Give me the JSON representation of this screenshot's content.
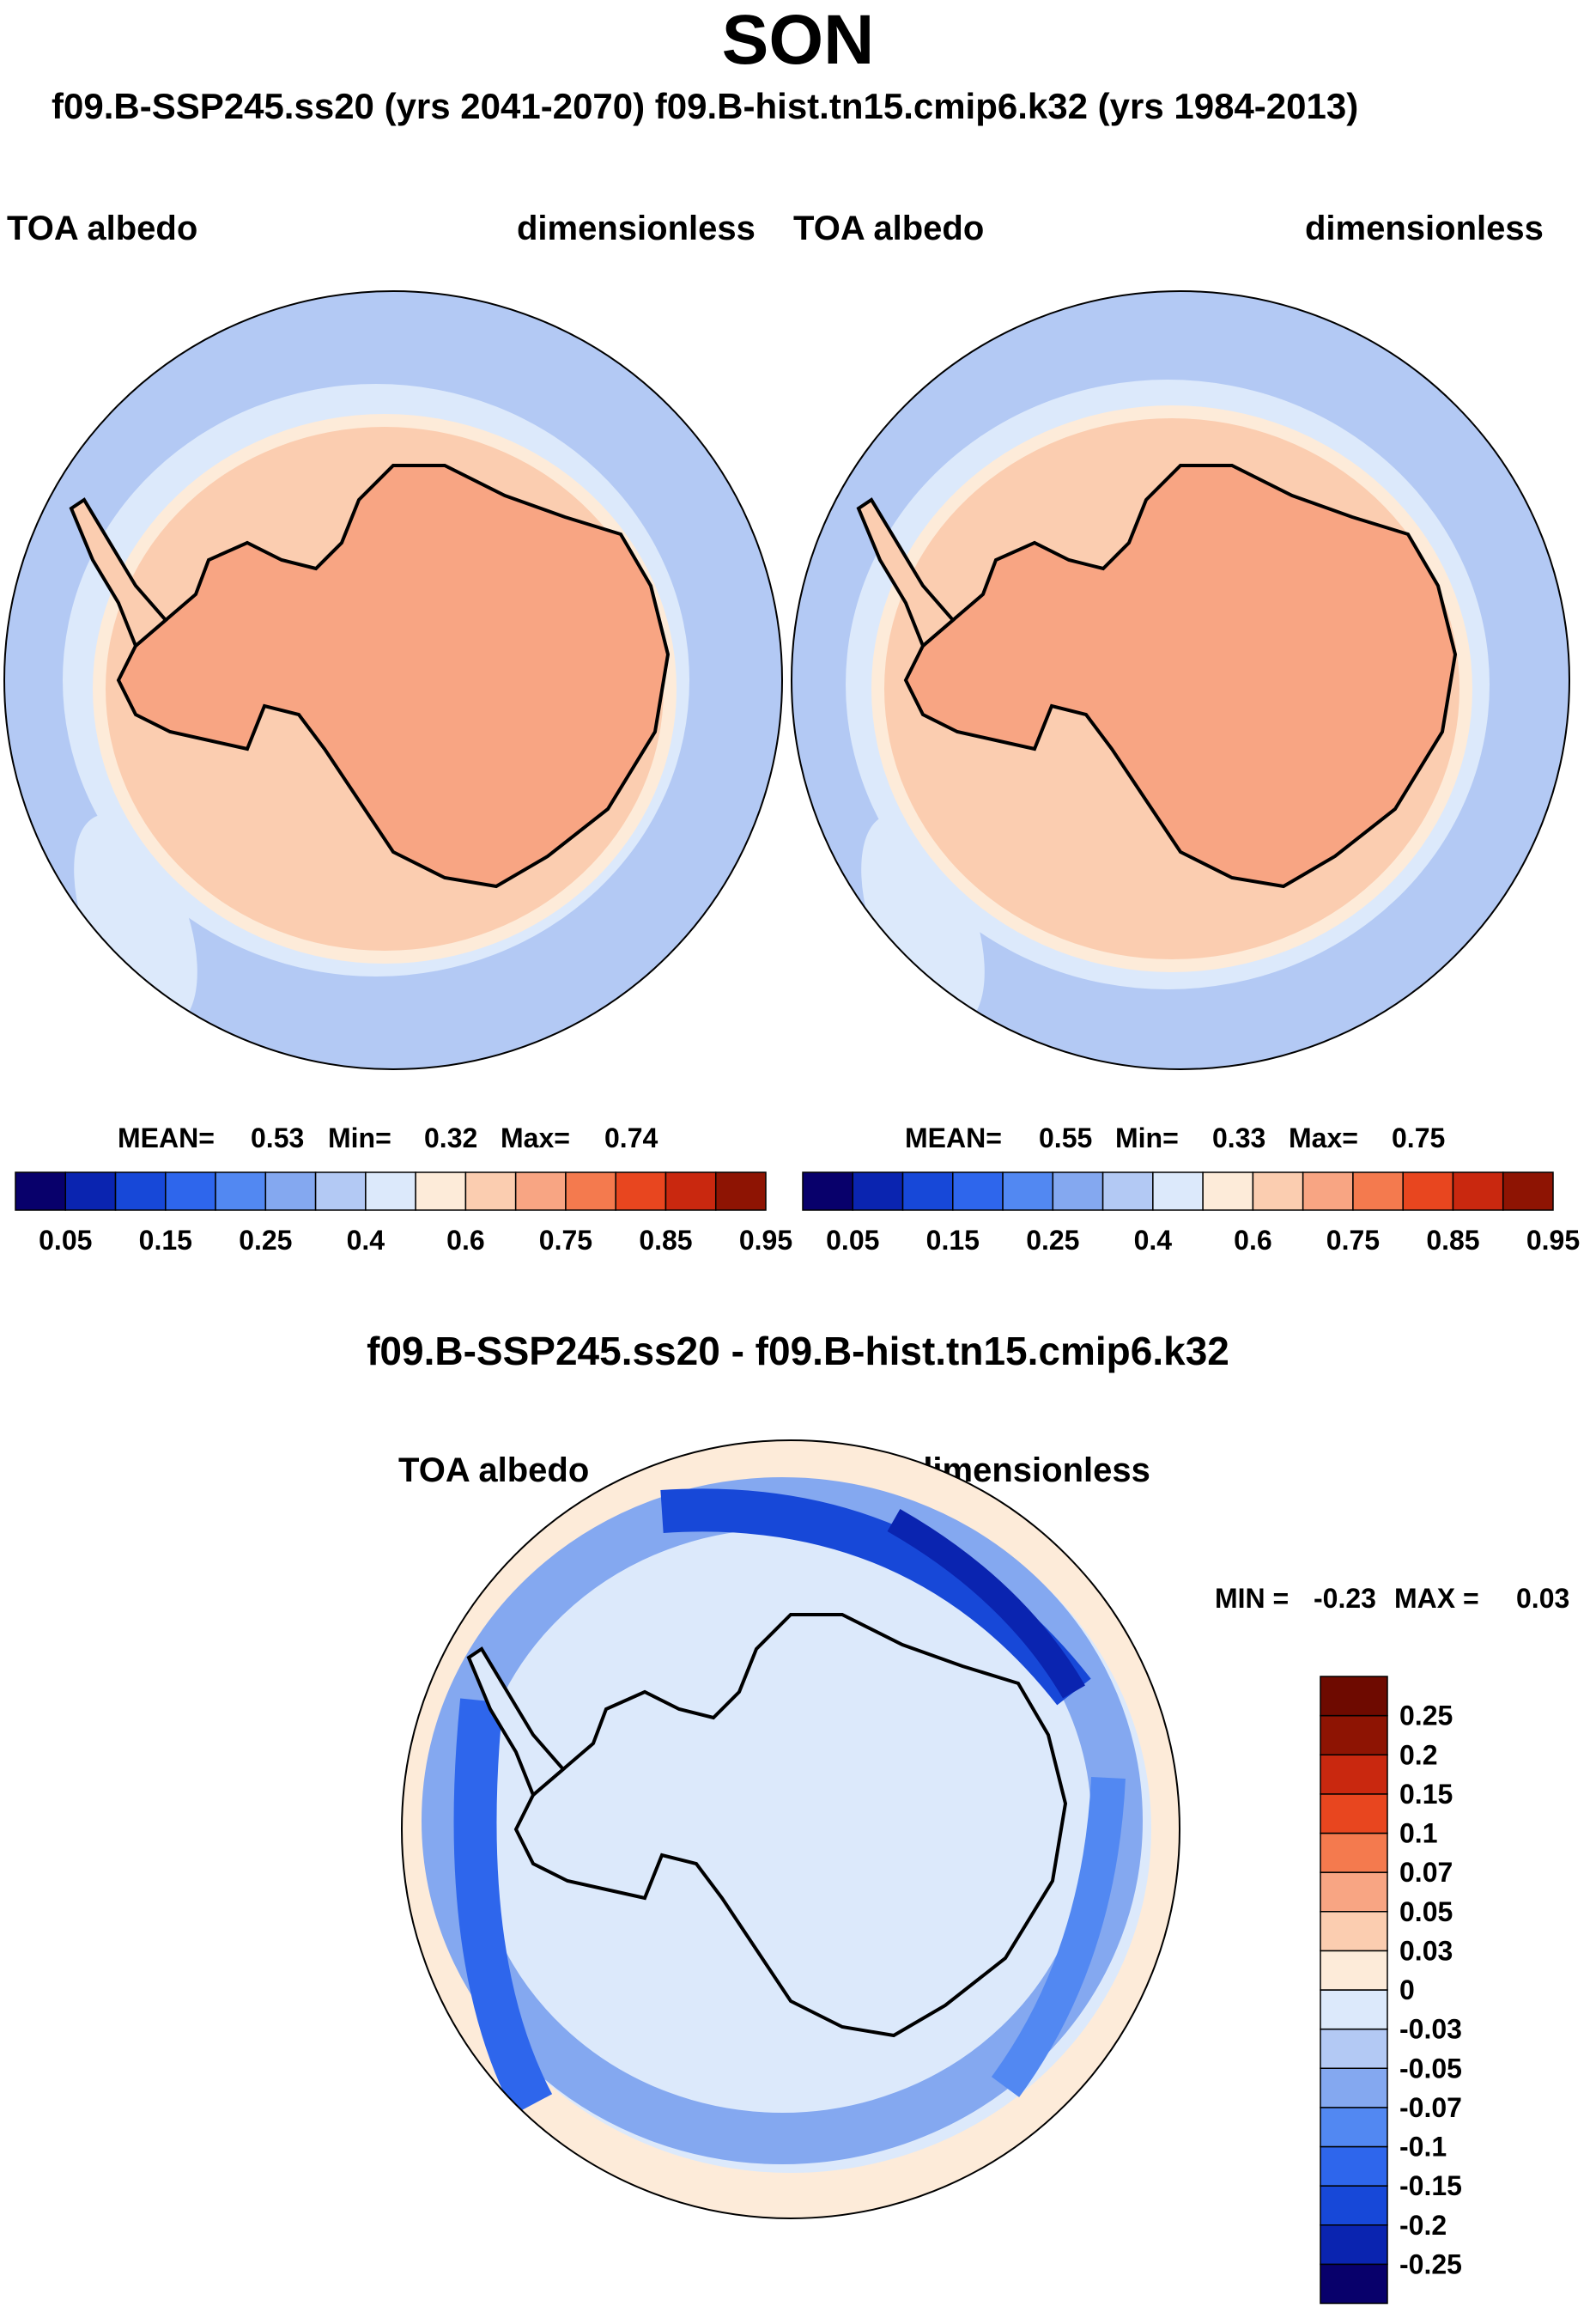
{
  "figure": {
    "season": "SON",
    "case_title": "f09.B-SSP245.ss20 (yrs 2041-2070)  f09.B-hist.tn15.cmip6.k32 (yrs 1984-2013)",
    "diff_title": "f09.B-SSP245.ss20 - f09.B-hist.tn15.cmip6.k32"
  },
  "chart_data": [
    {
      "type": "contour-map",
      "projection": "south-polar-stereographic",
      "panel": "left",
      "case": "f09.B-SSP245.ss20 (yrs 2041-2070)",
      "left_label": "TOA albedo",
      "right_label": "dimensionless",
      "stats": {
        "mean_label": "MEAN=",
        "mean": "0.53",
        "min_label": "Min=",
        "min": "0.32",
        "max_label": "Max=",
        "max": "0.74"
      },
      "levels": [
        0.05,
        0.1,
        0.15,
        0.2,
        0.25,
        0.3,
        0.4,
        0.5,
        0.6,
        0.7,
        0.75,
        0.8,
        0.85,
        0.95
      ],
      "tick_labels": [
        "0.05",
        "0.15",
        "0.25",
        "0.4",
        "0.6",
        "0.75",
        "0.85",
        "0.95"
      ],
      "colors": [
        "#08006b",
        "#0a24b0",
        "#1748d8",
        "#2e66ec",
        "#5288f2",
        "#84a8f0",
        "#b3c9f4",
        "#dce9fb",
        "#fdebd9",
        "#fbcdb0",
        "#f8a583",
        "#f47a4e",
        "#e8461f",
        "#c9280f",
        "#8e1403"
      ]
    },
    {
      "type": "contour-map",
      "projection": "south-polar-stereographic",
      "panel": "right",
      "case": "f09.B-hist.tn15.cmip6.k32 (yrs 1984-2013)",
      "left_label": "TOA albedo",
      "right_label": "dimensionless",
      "stats": {
        "mean_label": "MEAN=",
        "mean": "0.55",
        "min_label": "Min=",
        "min": "0.33",
        "max_label": "Max=",
        "max": "0.75"
      },
      "levels": [
        0.05,
        0.1,
        0.15,
        0.2,
        0.25,
        0.3,
        0.4,
        0.5,
        0.6,
        0.7,
        0.75,
        0.8,
        0.85,
        0.95
      ],
      "tick_labels": [
        "0.05",
        "0.15",
        "0.25",
        "0.4",
        "0.6",
        "0.75",
        "0.85",
        "0.95"
      ],
      "colors": [
        "#08006b",
        "#0a24b0",
        "#1748d8",
        "#2e66ec",
        "#5288f2",
        "#84a8f0",
        "#b3c9f4",
        "#dce9fb",
        "#fdebd9",
        "#fbcdb0",
        "#f8a583",
        "#f47a4e",
        "#e8461f",
        "#c9280f",
        "#8e1403"
      ]
    },
    {
      "type": "contour-map",
      "projection": "south-polar-stereographic",
      "panel": "difference",
      "left_label": "TOA albedo",
      "right_label": "dimensionless",
      "stats": {
        "min_label": "MIN =",
        "min": "-0.23",
        "max_label": "MAX =",
        "max": "0.03"
      },
      "levels": [
        -0.25,
        -0.2,
        -0.15,
        -0.1,
        -0.07,
        -0.05,
        -0.03,
        0,
        0.03,
        0.05,
        0.07,
        0.1,
        0.15,
        0.2,
        0.25
      ],
      "tick_labels": [
        "-0.25",
        "-0.2",
        "-0.15",
        "-0.1",
        "-0.07",
        "-0.05",
        "-0.03",
        "0",
        "0.03",
        "0.05",
        "0.07",
        "0.1",
        "0.15",
        "0.2",
        "0.25"
      ],
      "colors": [
        "#08006b",
        "#0a24b0",
        "#1748d8",
        "#2e66ec",
        "#5288f2",
        "#84a8f0",
        "#b3c9f4",
        "#dce9fb",
        "#fdebd9",
        "#fbcdb0",
        "#f8a583",
        "#f47a4e",
        "#e8461f",
        "#c9280f",
        "#8e1403",
        "#6e0a00"
      ]
    }
  ]
}
